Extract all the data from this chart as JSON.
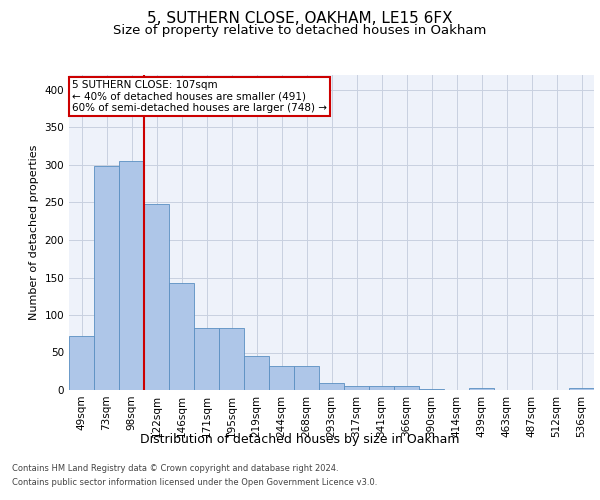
{
  "title1": "5, SUTHERN CLOSE, OAKHAM, LE15 6FX",
  "title2": "Size of property relative to detached houses in Oakham",
  "xlabel": "Distribution of detached houses by size in Oakham",
  "ylabel": "Number of detached properties",
  "categories": [
    "49sqm",
    "73sqm",
    "98sqm",
    "122sqm",
    "146sqm",
    "171sqm",
    "195sqm",
    "219sqm",
    "244sqm",
    "268sqm",
    "293sqm",
    "317sqm",
    "341sqm",
    "366sqm",
    "390sqm",
    "414sqm",
    "439sqm",
    "463sqm",
    "487sqm",
    "512sqm",
    "536sqm"
  ],
  "values": [
    72,
    299,
    305,
    248,
    143,
    83,
    83,
    45,
    32,
    32,
    9,
    6,
    5,
    6,
    1,
    0,
    3,
    0,
    0,
    0,
    3
  ],
  "bar_color": "#aec6e8",
  "bar_edge_color": "#5a8fc2",
  "highlight_index": 2,
  "highlight_color": "#cc0000",
  "annotation_text": "5 SUTHERN CLOSE: 107sqm\n← 40% of detached houses are smaller (491)\n60% of semi-detached houses are larger (748) →",
  "annotation_box_color": "#ffffff",
  "annotation_box_edge_color": "#cc0000",
  "ylim": [
    0,
    420
  ],
  "yticks": [
    0,
    50,
    100,
    150,
    200,
    250,
    300,
    350,
    400
  ],
  "grid_color": "#c8d0e0",
  "background_color": "#eef2fa",
  "footer_line1": "Contains HM Land Registry data © Crown copyright and database right 2024.",
  "footer_line2": "Contains public sector information licensed under the Open Government Licence v3.0.",
  "title1_fontsize": 11,
  "title2_fontsize": 9.5,
  "xlabel_fontsize": 9,
  "ylabel_fontsize": 8,
  "tick_fontsize": 7.5,
  "annotation_fontsize": 7.5,
  "footer_fontsize": 6
}
